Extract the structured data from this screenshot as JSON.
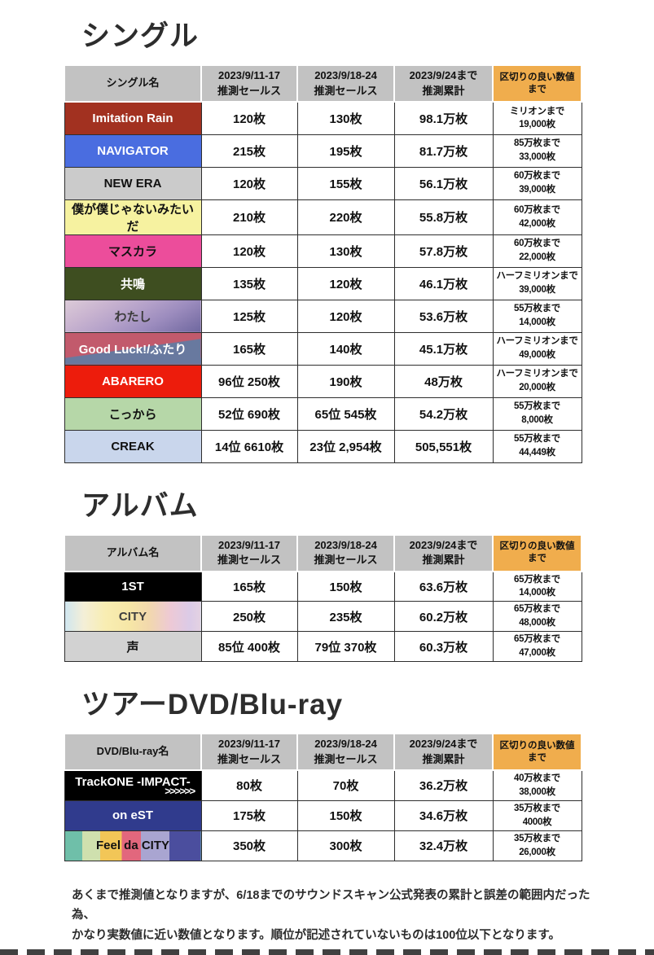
{
  "page": {
    "header_bg": "#c2c2c2",
    "header_accent_bg": "#f0ad4d",
    "grid_color": "#2e2e2e",
    "title_color": "#2d2d2d",
    "footer_note_lines": [
      "あくまで推測値となりますが、6/18までのサウンドスキャン公式発表の累計と誤差の範囲内だった為、",
      "かなり実数値に近い数値となります。順位が記述されていないものは100位以下となります。"
    ]
  },
  "chart_data": [
    {
      "type": "table",
      "title": "シングル",
      "columns": [
        "シングル名",
        "2023/9/11-17\n推測セールス",
        "2023/9/18-24\n推測セールス",
        "2023/9/24まで\n推測累計",
        "区切りの良い数値まで"
      ],
      "rows": [
        {
          "name": "Imitation Rain",
          "bg": "#a23120",
          "fg": "#ffffff",
          "values": [
            "120枚",
            "130枚",
            "98.1万枚"
          ],
          "milestone": [
            "ミリオンまで",
            "19,000枚"
          ]
        },
        {
          "name": "NAVIGATOR",
          "bg": "#4a6de0",
          "fg": "#ffffff",
          "values": [
            "215枚",
            "195枚",
            "81.7万枚"
          ],
          "milestone": [
            "85万枚まで",
            "33,000枚"
          ]
        },
        {
          "name": "NEW ERA",
          "bg": "#cbcbcb",
          "fg": "#111111",
          "values": [
            "120枚",
            "155枚",
            "56.1万枚"
          ],
          "milestone": [
            "60万枚まで",
            "39,000枚"
          ]
        },
        {
          "name": "僕が僕じゃないみたいだ",
          "bg": "#f6f2a0",
          "fg": "#111111",
          "values": [
            "210枚",
            "220枚",
            "55.8万枚"
          ],
          "milestone": [
            "60万枚まで",
            "42,000枚"
          ]
        },
        {
          "name": "マスカラ",
          "bg": "#ec4d9b",
          "fg": "#111111",
          "values": [
            "120枚",
            "130枚",
            "57.8万枚"
          ],
          "milestone": [
            "60万枚まで",
            "22,000枚"
          ]
        },
        {
          "name": "共鳴",
          "bg": "#3e4e20",
          "fg": "#ffffff",
          "values": [
            "135枚",
            "120枚",
            "46.1万枚"
          ],
          "milestone": [
            "ハーフミリオンまで",
            "39,000枚"
          ]
        },
        {
          "name": "わたし",
          "bg": "linear-gradient(150deg,#dccbd8 0%,#c9b4d0 25%,#b3a0c9 48%,#9c8cbe 68%,#8478ad 85%,#6f68a0 100%)",
          "fg": "#3a3a3a",
          "values": [
            "125枚",
            "120枚",
            "53.6万枚"
          ],
          "milestone": [
            "55万枚まで",
            "14,000枚"
          ]
        },
        {
          "name": "Good Luck!/ふたり",
          "bg": "linear-gradient(172deg,#c25a6c 49%,#68799f 51%)",
          "fg": "#ffffff",
          "values": [
            "165枚",
            "140枚",
            "45.1万枚"
          ],
          "milestone": [
            "ハーフミリオンまで",
            "49,000枚"
          ]
        },
        {
          "name": "ABARERO",
          "bg": "#ed1c0c",
          "fg": "#ffffff",
          "values": [
            "96位 250枚",
            "190枚",
            "48万枚"
          ],
          "milestone": [
            "ハーフミリオンまで",
            "20,000枚"
          ]
        },
        {
          "name": "こっから",
          "bg": "#b6d7a8",
          "fg": "#111111",
          "values": [
            "52位 690枚",
            "65位 545枚",
            "54.2万枚"
          ],
          "milestone": [
            "55万枚まで",
            "8,000枚"
          ]
        },
        {
          "name": "CREAK",
          "bg": "#c9d6ec",
          "fg": "#111111",
          "values": [
            "14位 6610枚",
            "23位 2,954枚",
            "505,551枚"
          ],
          "milestone": [
            "55万枚まで",
            "44,449枚"
          ]
        }
      ]
    },
    {
      "type": "table",
      "title": "アルバム",
      "columns": [
        "アルバム名",
        "2023/9/11-17\n推測セールス",
        "2023/9/18-24\n推測セールス",
        "2023/9/24まで\n推測累計",
        "区切りの良い数値まで"
      ],
      "rows": [
        {
          "name": "1ST",
          "bg": "#000000",
          "fg": "#ffffff",
          "values": [
            "165枚",
            "150枚",
            "63.6万枚"
          ],
          "milestone": [
            "65万枚まで",
            "14,000枚"
          ]
        },
        {
          "name": "CITY",
          "bg": "linear-gradient(90deg,#cfe6f0 0%,#f4efd7 14%,#f8edb2 30%,#f6e6a6 48%,#f2d8ad 62%,#edc9d6 78%,#dbcbe7 92%,#e4d2e2 100%)",
          "fg": "#3f3f3f",
          "values": [
            "250枚",
            "235枚",
            "60.2万枚"
          ],
          "milestone": [
            "65万枚まで",
            "48,000枚"
          ]
        },
        {
          "name": "声",
          "bg": "#d2d2d2",
          "fg": "#111111",
          "values": [
            "85位 400枚",
            "79位 370枚",
            "60.3万枚"
          ],
          "milestone": [
            "65万枚まで",
            "47,000枚"
          ]
        }
      ]
    },
    {
      "type": "table",
      "title": "ツアーDVD/Blu-ray",
      "columns": [
        "DVD/Blu-ray名",
        "2023/9/11-17\n推測セールス",
        "2023/9/18-24\n推測セールス",
        "2023/9/24まで\n推測累計",
        "区切りの良い数値まで"
      ],
      "rows": [
        {
          "name": "TrackONE -IMPACT-",
          "name_sub": ">>>>>>",
          "bg": "#000000",
          "fg": "#ffffff",
          "values": [
            "80枚",
            "70枚",
            "36.2万枚"
          ],
          "milestone": [
            "40万枚まで",
            "38,000枚"
          ]
        },
        {
          "name": "on eST",
          "bg": "#303b8d",
          "fg": "#ffffff",
          "values": [
            "175枚",
            "150枚",
            "34.6万枚"
          ],
          "milestone": [
            "35万枚まで",
            "4000枚"
          ]
        },
        {
          "name": "Feel da CITY",
          "bg": "linear-gradient(90deg,#6fbfa9 0 13%,#cfe0ae 13% 26%,#f2c657 26% 42%,#e2677d 42% 56%,#a9a5d1 56% 77%,#4b4e9e 77% 100%)",
          "fg": "#111111",
          "values": [
            "350枚",
            "300枚",
            "32.4万枚"
          ],
          "milestone": [
            "35万枚まで",
            "26,000枚"
          ]
        }
      ]
    }
  ]
}
